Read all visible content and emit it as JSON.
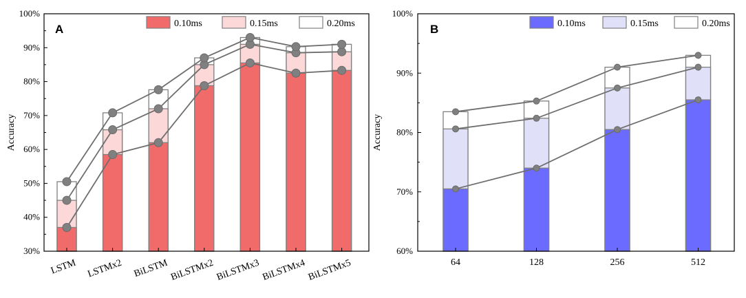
{
  "chart_data": [
    {
      "type": "bar",
      "panel_label": "A",
      "stacked_overlay": true,
      "categories": [
        "LSTM",
        "LSTMx2",
        "BiLSTM",
        "BiLSTMx2",
        "BiLSTMx3",
        "BiLSTMx4",
        "BiLSTMx5"
      ],
      "series": [
        {
          "name": "0.10ms",
          "values": [
            37.0,
            58.5,
            62.0,
            78.8,
            85.5,
            82.5,
            83.3
          ],
          "color": "#f26b6b"
        },
        {
          "name": "0.15ms",
          "values": [
            45.0,
            65.8,
            72.0,
            85.0,
            91.0,
            88.5,
            88.8
          ],
          "color": "#fcd8d8"
        },
        {
          "name": "0.20ms",
          "values": [
            50.5,
            70.8,
            77.6,
            87.0,
            93.0,
            90.3,
            91.0
          ],
          "color": "#ffffff"
        }
      ],
      "ylabel": "Accuracy",
      "xlabel": "",
      "ylim": [
        30,
        100
      ],
      "yticks": [
        "30%",
        "40%",
        "50%",
        "60%",
        "70%",
        "80%",
        "90%",
        "100%"
      ],
      "ytick_values": [
        30,
        40,
        50,
        60,
        70,
        80,
        90,
        100
      ],
      "legend": [
        "0.10ms",
        "0.15ms",
        "0.20ms"
      ],
      "legend_position": "top",
      "grid": false
    },
    {
      "type": "bar",
      "panel_label": "B",
      "stacked_overlay": true,
      "categories": [
        "64",
        "128",
        "256",
        "512"
      ],
      "series": [
        {
          "name": "0.10ms",
          "values": [
            70.5,
            74.0,
            80.5,
            85.5
          ],
          "color": "#6b6bff"
        },
        {
          "name": "0.15ms",
          "values": [
            80.6,
            82.4,
            87.5,
            91.0
          ],
          "color": "#e0e0f8"
        },
        {
          "name": "0.20ms",
          "values": [
            83.5,
            85.3,
            91.0,
            93.0
          ],
          "color": "#ffffff"
        }
      ],
      "ylabel": "Accuracy",
      "xlabel": "",
      "ylim": [
        60,
        100
      ],
      "yticks": [
        "60%",
        "70%",
        "80%",
        "90%",
        "100%"
      ],
      "ytick_values": [
        60,
        70,
        80,
        90,
        100
      ],
      "legend": [
        "0.10ms",
        "0.15ms",
        "0.20ms"
      ],
      "legend_position": "top",
      "grid": false
    }
  ]
}
